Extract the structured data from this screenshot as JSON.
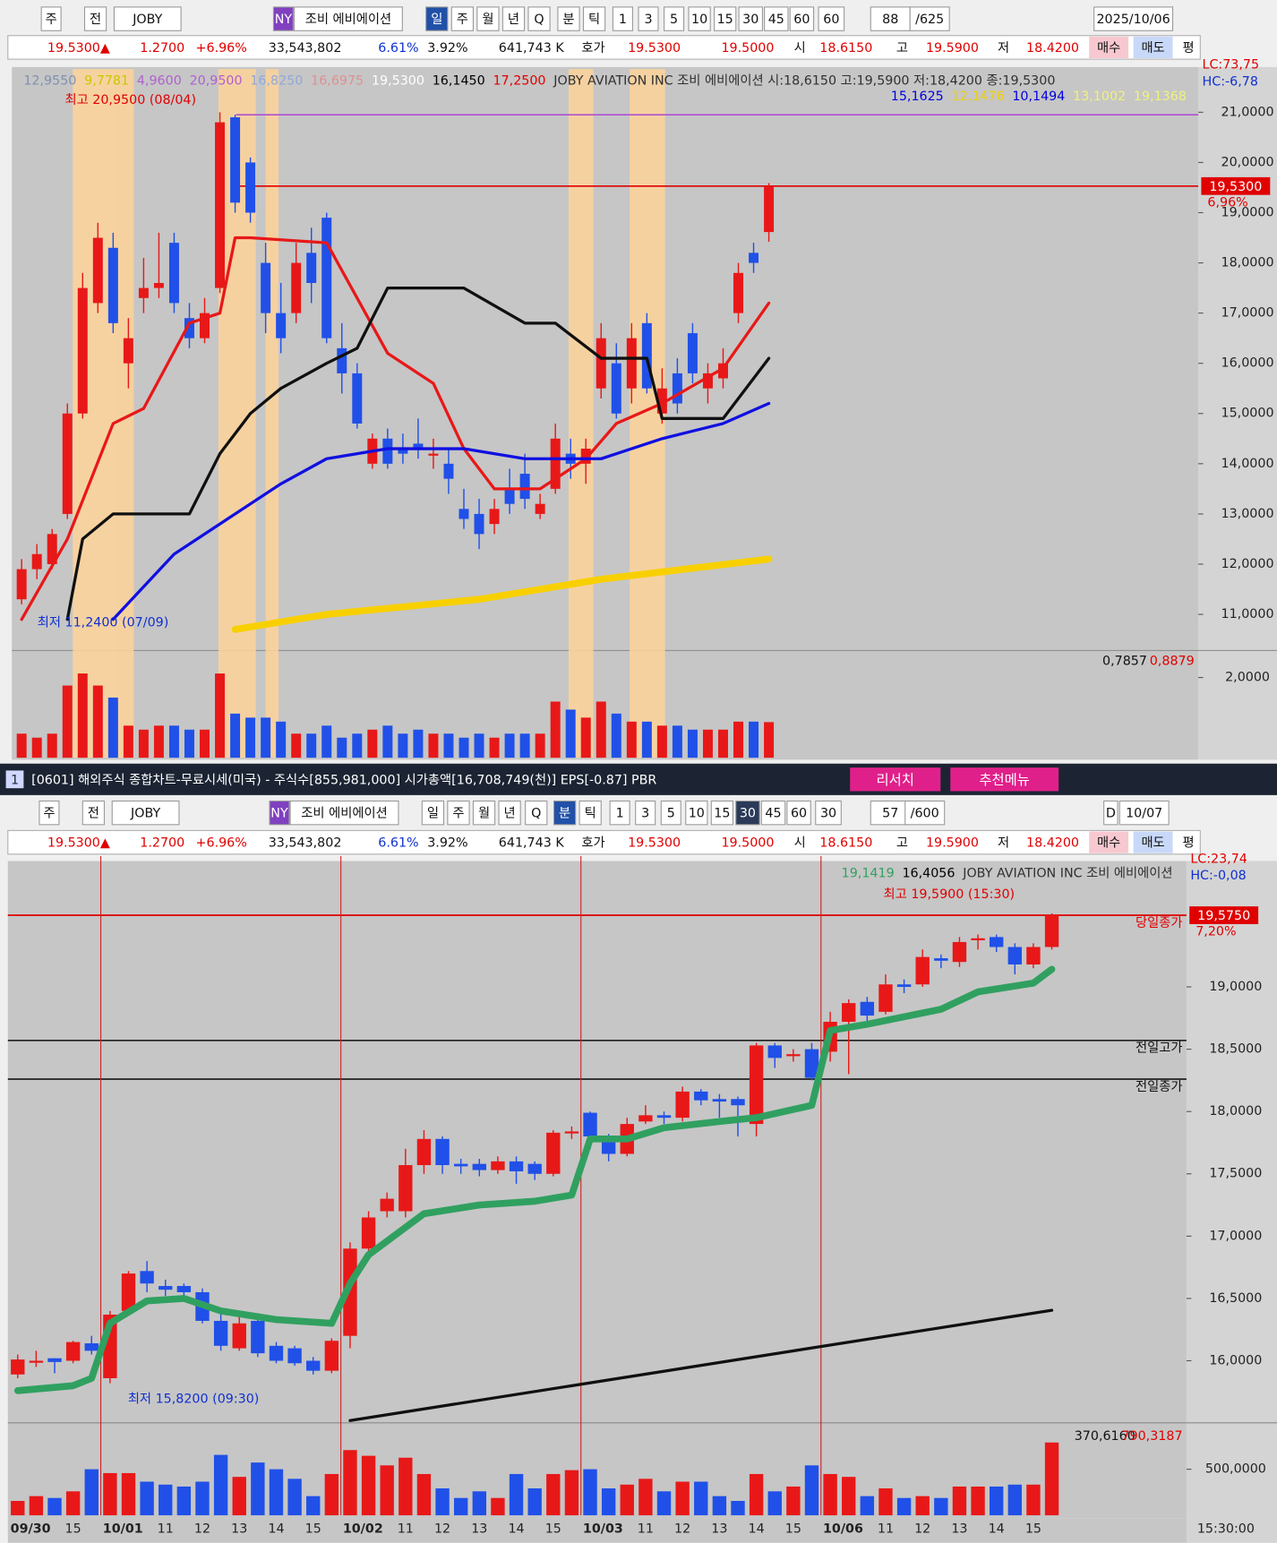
{
  "top_toolbar": [
    "주",
    "전",
    "JOBY",
    "NY",
    "조비 에비에이션",
    "일",
    "주",
    "월",
    "년",
    "Q",
    "분",
    "틱",
    "1",
    "3",
    "5",
    "10",
    "15",
    "30",
    "45",
    "60",
    "60",
    "88",
    "/625",
    "2025/10/06"
  ],
  "top_quote": [
    "19.5300▲",
    "1.2700",
    "+6.96%",
    "33,543,802",
    "6.61%",
    "3.92%",
    "641,743 K",
    "호가",
    "19.5300",
    "19.5000",
    "시",
    "18.6150",
    "고",
    "19.5900",
    "저",
    "18.4200",
    "매수",
    "매도",
    "평"
  ],
  "daily_chart": {
    "type": "candlestick",
    "legend_row1": [
      {
        "text": "12,9550",
        "color": "#8090b0"
      },
      {
        "text": "9,7781",
        "color": "#c8c800"
      },
      {
        "text": "4,9600",
        "color": "#b060d0"
      },
      {
        "text": "20,9500",
        "color": "#b060d0"
      },
      {
        "text": "16,8250",
        "color": "#90a8d8"
      },
      {
        "text": "16,6975",
        "color": "#e09090"
      },
      {
        "text": "19,5300",
        "color": "#ffffff"
      },
      {
        "text": "16,1450",
        "color": "#000000"
      },
      {
        "text": "17,2500",
        "color": "#e00000"
      },
      {
        "text": "JOBY AVIATION INC  조비 에비에이션 시:18,6150 고:19,5900 저:18,4200 종:19,5300",
        "color": "#303030"
      }
    ],
    "legend_row2": [
      {
        "text": "15,1625",
        "color": "#0000e0"
      },
      {
        "text": "12,1476",
        "color": "#f0d000"
      },
      {
        "text": "10,1494",
        "color": "#0000e0"
      },
      {
        "text": "13,1002",
        "color": "#f0f080"
      },
      {
        "text": "19,1368",
        "color": "#f0f080"
      }
    ],
    "lc": "LC:73,75",
    "hc": "HC:-6,78",
    "high_annotation": "최고 20,9500 (08/04)",
    "low_annotation": "최저 11,2400 (07/09)",
    "price_badge": "19,5300",
    "change_badge": "6,96%",
    "ylim": [
      10.3,
      21.9
    ],
    "yticks": [
      {
        "value": 21,
        "label": "21,0000"
      },
      {
        "value": 20,
        "label": "20,0000"
      },
      {
        "value": 19,
        "label": "19,0000"
      },
      {
        "value": 18,
        "label": "18,0000"
      },
      {
        "value": 17,
        "label": "17,0000"
      },
      {
        "value": 16,
        "label": "16,0000"
      },
      {
        "value": 15,
        "label": "15,0000"
      },
      {
        "value": 14,
        "label": "14,0000"
      },
      {
        "value": 13,
        "label": "13,0000"
      },
      {
        "value": 12,
        "label": "12,0000"
      },
      {
        "value": 11,
        "label": "11,0000"
      }
    ],
    "reference_lines": [
      {
        "value": 20.95,
        "color": "#b050d0"
      },
      {
        "value": 19.53,
        "color": "#e00000"
      }
    ],
    "up_color": "#e81818",
    "down_color": "#2050e8",
    "candles": [
      [
        11.3,
        12.1,
        11.2,
        11.9
      ],
      [
        11.9,
        12.4,
        11.7,
        12.2
      ],
      [
        12.0,
        12.7,
        11.9,
        12.6
      ],
      [
        13.0,
        15.2,
        12.9,
        15.0
      ],
      [
        15.0,
        17.8,
        14.9,
        17.5
      ],
      [
        17.2,
        18.8,
        17.0,
        18.5
      ],
      [
        18.3,
        18.6,
        16.6,
        16.8
      ],
      [
        16.0,
        16.9,
        15.5,
        16.5
      ],
      [
        17.3,
        18.1,
        17.0,
        17.5
      ],
      [
        17.5,
        18.6,
        17.3,
        17.6
      ],
      [
        18.4,
        18.6,
        17.0,
        17.2
      ],
      [
        16.9,
        17.2,
        16.3,
        16.5
      ],
      [
        16.5,
        17.3,
        16.4,
        17.0
      ],
      [
        17.5,
        21.0,
        17.4,
        20.8
      ],
      [
        20.9,
        20.95,
        19.0,
        19.2
      ],
      [
        20.0,
        20.1,
        18.8,
        19.0
      ],
      [
        18.0,
        18.4,
        16.6,
        17.0
      ],
      [
        17.0,
        17.6,
        16.2,
        16.5
      ],
      [
        17.0,
        18.4,
        16.8,
        18.0
      ],
      [
        18.2,
        18.7,
        17.2,
        17.6
      ],
      [
        18.9,
        19.0,
        16.4,
        16.5
      ],
      [
        16.3,
        16.8,
        15.4,
        15.8
      ],
      [
        15.8,
        16.0,
        14.7,
        14.8
      ],
      [
        14.0,
        14.6,
        13.9,
        14.5
      ],
      [
        14.5,
        14.7,
        13.9,
        14.0
      ],
      [
        14.3,
        14.6,
        14.0,
        14.2
      ],
      [
        14.4,
        14.9,
        14.1,
        14.3
      ],
      [
        14.2,
        14.5,
        13.9,
        14.2
      ],
      [
        14.0,
        14.3,
        13.4,
        13.7
      ],
      [
        13.1,
        13.5,
        12.7,
        12.9
      ],
      [
        13.0,
        13.3,
        12.3,
        12.6
      ],
      [
        12.8,
        13.3,
        12.6,
        13.1
      ],
      [
        13.5,
        13.9,
        13.0,
        13.2
      ],
      [
        13.8,
        14.2,
        13.1,
        13.3
      ],
      [
        13.0,
        13.4,
        12.9,
        13.2
      ],
      [
        13.5,
        14.8,
        13.4,
        14.5
      ],
      [
        14.2,
        14.5,
        13.7,
        14.0
      ],
      [
        14.0,
        14.5,
        13.6,
        14.3
      ],
      [
        15.5,
        16.8,
        15.3,
        16.5
      ],
      [
        16.0,
        16.4,
        14.9,
        15.0
      ],
      [
        15.5,
        16.8,
        15.2,
        16.5
      ],
      [
        16.8,
        17.0,
        15.4,
        15.5
      ],
      [
        15.0,
        15.9,
        14.8,
        15.5
      ],
      [
        15.8,
        16.1,
        15.0,
        15.2
      ],
      [
        16.6,
        16.8,
        15.6,
        15.8
      ],
      [
        15.5,
        16.0,
        15.2,
        15.8
      ],
      [
        15.7,
        16.3,
        15.5,
        16.0
      ],
      [
        17.0,
        18.0,
        16.8,
        17.8
      ],
      [
        18.2,
        18.4,
        17.8,
        18.0
      ],
      [
        18.615,
        19.59,
        18.42,
        19.53
      ]
    ],
    "lines": [
      {
        "color": "#e81818",
        "width": 3,
        "x": [
          0,
          3,
          6,
          8,
          11,
          13,
          14,
          15,
          20,
          24,
          27,
          29,
          31,
          34,
          37,
          39,
          42,
          46,
          49
        ],
        "values": [
          10.9,
          12.5,
          14.8,
          15.1,
          16.8,
          17.0,
          18.5,
          18.5,
          18.4,
          16.2,
          15.6,
          14.3,
          13.5,
          13.5,
          14.1,
          14.8,
          15.2,
          15.9,
          17.2
        ]
      },
      {
        "color": "#101010",
        "width": 3,
        "x": [
          3,
          4,
          6,
          11,
          13,
          15,
          17,
          20,
          22,
          24,
          29,
          33,
          35,
          38,
          41,
          42,
          46,
          49
        ],
        "values": [
          10.9,
          12.5,
          13.0,
          13.0,
          14.2,
          15.0,
          15.5,
          16.0,
          16.3,
          17.5,
          17.5,
          16.8,
          16.8,
          16.1,
          16.1,
          14.9,
          14.9,
          16.1
        ]
      },
      {
        "color": "#1010e0",
        "width": 3,
        "x": [
          6,
          10,
          14,
          17,
          20,
          24,
          29,
          33,
          38,
          42,
          46,
          49
        ],
        "values": [
          10.9,
          12.2,
          13.0,
          13.6,
          14.1,
          14.3,
          14.3,
          14.1,
          14.1,
          14.5,
          14.8,
          15.2
        ]
      },
      {
        "color": "#f8d000",
        "width": 7,
        "x": [
          14,
          20,
          30,
          38,
          49
        ],
        "values": [
          10.7,
          11.0,
          11.3,
          11.7,
          12.1
        ]
      }
    ],
    "volume_labels": [
      "0,7857",
      "0,8879"
    ],
    "volume_ylim": [
      0,
      2.6
    ],
    "volume_yticks": [
      {
        "value": 2,
        "label": "2,0000"
      }
    ],
    "volumes": [
      0.6,
      0.5,
      0.6,
      1.8,
      2.1,
      1.8,
      1.5,
      0.8,
      0.7,
      0.8,
      0.8,
      0.7,
      0.7,
      2.1,
      1.1,
      1.0,
      1.0,
      0.9,
      0.6,
      0.6,
      0.8,
      0.5,
      0.6,
      0.7,
      0.8,
      0.6,
      0.7,
      0.6,
      0.6,
      0.5,
      0.6,
      0.5,
      0.6,
      0.6,
      0.6,
      1.4,
      1.2,
      1.0,
      1.4,
      1.1,
      0.9,
      0.9,
      0.8,
      0.8,
      0.7,
      0.7,
      0.7,
      0.9,
      0.9,
      0.8879
    ]
  },
  "window_title": {
    "number": "1",
    "text": "[0601] 해외주식 종합차트-무료시세(미국) - 주식수[855,981,000] 시가총액[16,708,749(천)] EPS[-0.87] PBR",
    "research": "리서치",
    "menu": "추천메뉴"
  },
  "bottom_toolbar": [
    "주",
    "전",
    "JOBY",
    "NY",
    "조비 에비에이션",
    "일",
    "주",
    "월",
    "년",
    "Q",
    "분",
    "틱",
    "1",
    "3",
    "5",
    "10",
    "15",
    "30",
    "45",
    "60",
    "30",
    "57",
    "/600",
    "D",
    "10/07"
  ],
  "bottom_quote": [
    "19.5300▲",
    "1.2700",
    "+6.96%",
    "33,543,802",
    "6.61%",
    "3.92%",
    "641,743 K",
    "호가",
    "19.5300",
    "19.5000",
    "시",
    "18.6150",
    "고",
    "19.5900",
    "저",
    "18.4200",
    "매수",
    "매도",
    "평"
  ],
  "intraday_chart": {
    "type": "candlestick",
    "legend": [
      {
        "text": "19,1419",
        "color": "#30a060"
      },
      {
        "text": "16,4056",
        "color": "#000000"
      },
      {
        "text": "JOBY AVIATION INC  조비 에비에이션",
        "color": "#303030"
      }
    ],
    "lc": "LC:23,74",
    "hc": "HC:-0,08",
    "high_annotation": "최고 19,5900 (15:30)",
    "low_annotation": "최저 15,8200 (09:30)",
    "price_badge": "19,5750",
    "change_badge": "7,20%",
    "ylim": [
      15.51,
      20.01
    ],
    "yticks": [
      {
        "value": 19,
        "label": "19,0000"
      },
      {
        "value": 18.5,
        "label": "18,5000"
      },
      {
        "value": 18,
        "label": "18,0000"
      },
      {
        "value": 17.5,
        "label": "17,5000"
      },
      {
        "value": 17,
        "label": "17,0000"
      },
      {
        "value": 16.5,
        "label": "16,5000"
      },
      {
        "value": 16,
        "label": "16,0000"
      }
    ],
    "reference_lines": [
      {
        "value": 19.575,
        "color": "#e00000",
        "label": "당일종가"
      },
      {
        "value": 18.57,
        "color": "#202020",
        "label": "전일고가"
      },
      {
        "value": 18.26,
        "color": "#202020",
        "label": "전일종가"
      }
    ],
    "up_color": "#e81818",
    "down_color": "#2050e8",
    "categories": [
      "09/30",
      null,
      null,
      "15",
      null,
      "10/01",
      null,
      null,
      "11",
      null,
      "12",
      null,
      "13",
      null,
      "14",
      null,
      "15",
      null,
      "10/02",
      null,
      null,
      "11",
      null,
      "12",
      null,
      "13",
      null,
      "14",
      null,
      "15",
      null,
      "10/03",
      null,
      null,
      "11",
      null,
      "12",
      null,
      "13",
      null,
      "14",
      null,
      "15",
      null,
      "10/06",
      null,
      null,
      "11",
      null,
      "12",
      null,
      "13",
      null,
      "14",
      null,
      "15",
      null
    ],
    "time_label": "15:30:00",
    "candles": [
      [
        15.89,
        16.05,
        15.86,
        16.01
      ],
      [
        16.0,
        16.08,
        15.95,
        16.0
      ],
      [
        16.02,
        16.02,
        15.9,
        15.99
      ],
      [
        16.0,
        16.16,
        15.98,
        16.15
      ],
      [
        16.14,
        16.2,
        16.05,
        16.08
      ],
      [
        15.86,
        16.4,
        15.82,
        16.37
      ],
      [
        16.4,
        16.72,
        16.38,
        16.7
      ],
      [
        16.72,
        16.8,
        16.55,
        16.62
      ],
      [
        16.6,
        16.65,
        16.52,
        16.57
      ],
      [
        16.6,
        16.62,
        16.5,
        16.55
      ],
      [
        16.55,
        16.58,
        16.3,
        16.32
      ],
      [
        16.32,
        16.4,
        16.08,
        16.12
      ],
      [
        16.1,
        16.35,
        16.08,
        16.3
      ],
      [
        16.32,
        16.35,
        16.03,
        16.06
      ],
      [
        16.12,
        16.15,
        15.98,
        16.0
      ],
      [
        16.1,
        16.12,
        15.96,
        15.98
      ],
      [
        16.0,
        16.03,
        15.89,
        15.92
      ],
      [
        15.92,
        16.18,
        15.9,
        16.16
      ],
      [
        16.2,
        16.95,
        16.1,
        16.9
      ],
      [
        16.9,
        17.2,
        16.85,
        17.15
      ],
      [
        17.2,
        17.35,
        17.15,
        17.3
      ],
      [
        17.2,
        17.7,
        17.15,
        17.57
      ],
      [
        17.57,
        17.85,
        17.5,
        17.78
      ],
      [
        17.78,
        17.8,
        17.5,
        17.57
      ],
      [
        17.58,
        17.62,
        17.5,
        17.56
      ],
      [
        17.58,
        17.62,
        17.48,
        17.53
      ],
      [
        17.53,
        17.64,
        17.5,
        17.6
      ],
      [
        17.6,
        17.64,
        17.42,
        17.52
      ],
      [
        17.58,
        17.6,
        17.45,
        17.5
      ],
      [
        17.5,
        17.85,
        17.48,
        17.83
      ],
      [
        17.83,
        17.88,
        17.78,
        17.84
      ],
      [
        17.99,
        18.0,
        17.7,
        17.8
      ],
      [
        17.8,
        17.82,
        17.6,
        17.66
      ],
      [
        17.66,
        17.95,
        17.64,
        17.9
      ],
      [
        17.92,
        18.05,
        17.9,
        17.97
      ],
      [
        17.97,
        18.0,
        17.9,
        17.95
      ],
      [
        17.95,
        18.2,
        17.92,
        18.16
      ],
      [
        18.16,
        18.18,
        18.05,
        18.09
      ],
      [
        18.1,
        18.14,
        17.95,
        18.08
      ],
      [
        18.1,
        18.12,
        17.8,
        18.05
      ],
      [
        17.9,
        18.55,
        17.8,
        18.53
      ],
      [
        18.53,
        18.55,
        18.35,
        18.43
      ],
      [
        18.45,
        18.5,
        18.4,
        18.46
      ],
      [
        18.5,
        18.55,
        18.25,
        18.27
      ],
      [
        18.48,
        18.8,
        18.4,
        18.72
      ],
      [
        18.72,
        18.9,
        18.3,
        18.87
      ],
      [
        18.88,
        18.92,
        18.7,
        18.77
      ],
      [
        18.8,
        19.1,
        18.78,
        19.02
      ],
      [
        19.02,
        19.06,
        18.95,
        19.0
      ],
      [
        19.02,
        19.3,
        19.0,
        19.24
      ],
      [
        19.23,
        19.26,
        19.15,
        19.21
      ],
      [
        19.2,
        19.4,
        19.16,
        19.36
      ],
      [
        19.38,
        19.42,
        19.3,
        19.39
      ],
      [
        19.4,
        19.42,
        19.28,
        19.32
      ],
      [
        19.32,
        19.35,
        19.1,
        19.18
      ],
      [
        19.18,
        19.35,
        19.15,
        19.32
      ],
      [
        19.32,
        19.59,
        19.3,
        19.575
      ]
    ],
    "lines": [
      {
        "color": "#30a060",
        "width": 7,
        "x": [
          0,
          3,
          4,
          5,
          7,
          9,
          11,
          14,
          17,
          18,
          19,
          22,
          25,
          28,
          30,
          31,
          33,
          35,
          38,
          40,
          43,
          44,
          46,
          50,
          52,
          55,
          56
        ],
        "values": [
          15.76,
          15.8,
          15.86,
          16.3,
          16.48,
          16.5,
          16.4,
          16.33,
          16.3,
          16.62,
          16.85,
          17.18,
          17.25,
          17.28,
          17.33,
          17.78,
          17.78,
          17.87,
          17.92,
          17.95,
          18.05,
          18.65,
          18.7,
          18.82,
          18.96,
          19.03,
          19.1419
        ]
      },
      {
        "color": "#101010",
        "width": 3,
        "x": [
          18,
          56
        ],
        "values": [
          15.52,
          16.4056
        ]
      }
    ],
    "volume_labels": [
      "370,6160",
      "790,3187"
    ],
    "volume_ylim": [
      0,
      940
    ],
    "volume_yticks": [
      {
        "value": 500,
        "label": "500,0000"
      }
    ],
    "volumes": [
      156,
      208,
      188,
      260,
      500,
      458,
      458,
      365,
      333,
      312,
      365,
      656,
      417,
      573,
      500,
      396,
      208,
      448,
      708,
      646,
      542,
      625,
      448,
      292,
      188,
      260,
      188,
      448,
      292,
      448,
      490,
      500,
      292,
      333,
      396,
      260,
      365,
      365,
      208,
      156,
      448,
      260,
      312,
      542,
      448,
      417,
      208,
      292,
      188,
      208,
      188,
      312,
      312,
      312,
      333,
      333,
      790.3187
    ]
  }
}
